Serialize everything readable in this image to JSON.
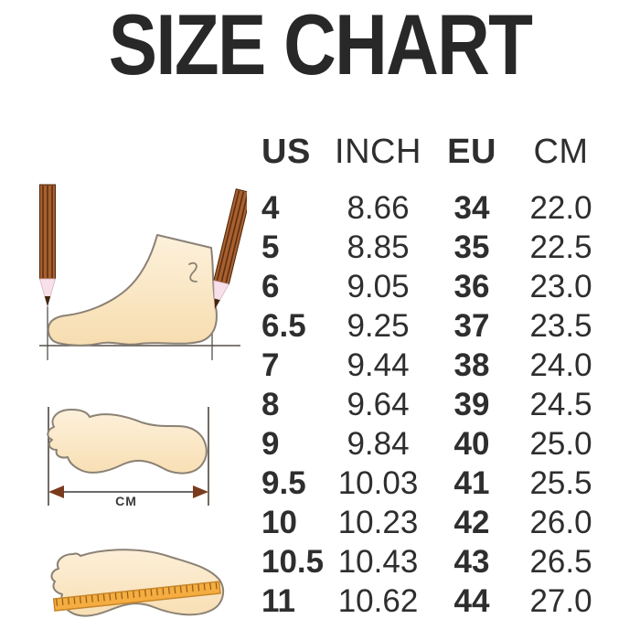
{
  "title": "SIZE CHART",
  "chart_data": {
    "type": "table",
    "title": "SIZE CHART",
    "columns": [
      "US",
      "INCH",
      "EU",
      "CM"
    ],
    "rows": [
      [
        "4",
        "8.66",
        "34",
        "22.0"
      ],
      [
        "5",
        "8.85",
        "35",
        "22.5"
      ],
      [
        "6",
        "9.05",
        "36",
        "23.0"
      ],
      [
        "6.5",
        "9.25",
        "37",
        "23.5"
      ],
      [
        "7",
        "9.44",
        "38",
        "24.0"
      ],
      [
        "8",
        "9.64",
        "39",
        "24.5"
      ],
      [
        "9",
        "9.84",
        "40",
        "25.0"
      ],
      [
        "9.5",
        "10.03",
        "41",
        "25.5"
      ],
      [
        "10",
        "10.23",
        "42",
        "26.0"
      ],
      [
        "10.5",
        "10.43",
        "43",
        "26.5"
      ],
      [
        "11",
        "10.62",
        "44",
        "27.0"
      ]
    ]
  },
  "illustrations": {
    "measure_unit_label": "CM",
    "items": [
      {
        "name": "foot-side-measured-with-pencils"
      },
      {
        "name": "footprint-length-with-cm-arrow"
      },
      {
        "name": "footprint-with-ruler"
      }
    ]
  },
  "colors": {
    "background": "#FFFFFF",
    "text": "#2E2E2E",
    "title_text": "#282828",
    "foot_fill": "#FAE6C4",
    "foot_outline": "#8B8175",
    "pencil_brown": "#A86030",
    "pencil_stripe": "#5E2F10",
    "pencil_wood": "#F7E0EA",
    "ruler_orange": "#F5AD41",
    "arrow_brown": "#7A3B1C",
    "guide_line": "#55504A"
  }
}
